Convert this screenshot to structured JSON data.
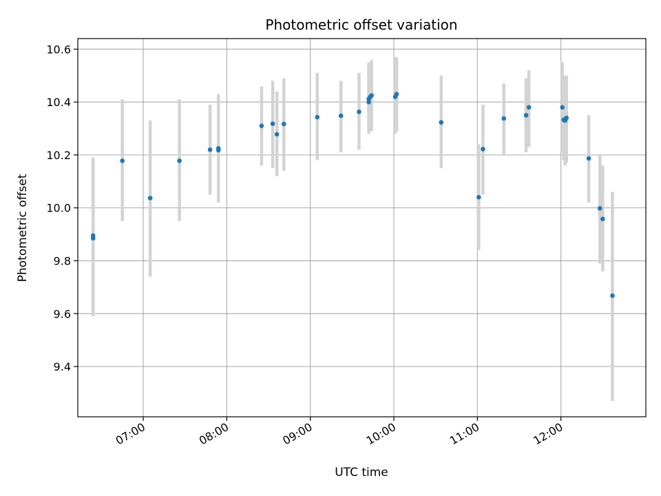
{
  "chart_data": {
    "type": "scatter",
    "title": "Photometric offset variation",
    "xlabel": "UTC time",
    "ylabel": "Photometric offset",
    "x_tick_labels": [
      "07:00",
      "08:00",
      "09:00",
      "10:00",
      "11:00",
      "12:00"
    ],
    "y_tick_labels": [
      "9.4",
      "9.6",
      "9.8",
      "10.0",
      "10.2",
      "10.4",
      "10.6"
    ],
    "y_ticks": [
      9.4,
      9.6,
      9.8,
      10.0,
      10.2,
      10.4,
      10.6
    ],
    "x_ticks": [
      "07:00",
      "08:00",
      "09:00",
      "10:00",
      "11:00",
      "12:00"
    ],
    "xlim": [
      "06:13",
      "13:01"
    ],
    "ylim": [
      9.21,
      10.64
    ],
    "grid": true,
    "colors": {
      "points": "#1f77b4",
      "errorbars": "#d3d3d3",
      "grid": "#b0b0b0"
    },
    "points": [
      {
        "t": "06:24",
        "y": 9.885,
        "lo": 9.59,
        "hi": 10.18
      },
      {
        "t": "06:24",
        "y": 9.895,
        "lo": 9.6,
        "hi": 10.19
      },
      {
        "t": "06:45",
        "y": 10.178,
        "lo": 9.95,
        "hi": 10.41
      },
      {
        "t": "07:05",
        "y": 10.037,
        "lo": 9.74,
        "hi": 10.33
      },
      {
        "t": "07:26",
        "y": 10.178,
        "lo": 9.95,
        "hi": 10.41
      },
      {
        "t": "07:48",
        "y": 10.22,
        "lo": 10.05,
        "hi": 10.39
      },
      {
        "t": "07:54",
        "y": 10.225,
        "lo": 10.03,
        "hi": 10.43
      },
      {
        "t": "07:54",
        "y": 10.218,
        "lo": 10.02,
        "hi": 10.42
      },
      {
        "t": "08:25",
        "y": 10.31,
        "lo": 10.16,
        "hi": 10.46
      },
      {
        "t": "08:33",
        "y": 10.318,
        "lo": 10.15,
        "hi": 10.48
      },
      {
        "t": "08:36",
        "y": 10.278,
        "lo": 10.12,
        "hi": 10.44
      },
      {
        "t": "08:41",
        "y": 10.317,
        "lo": 10.14,
        "hi": 10.49
      },
      {
        "t": "09:05",
        "y": 10.343,
        "lo": 10.18,
        "hi": 10.51
      },
      {
        "t": "09:22",
        "y": 10.348,
        "lo": 10.21,
        "hi": 10.48
      },
      {
        "t": "09:35",
        "y": 10.363,
        "lo": 10.22,
        "hi": 10.51
      },
      {
        "t": "09:42",
        "y": 10.4,
        "lo": 10.28,
        "hi": 10.54
      },
      {
        "t": "09:42",
        "y": 10.412,
        "lo": 10.28,
        "hi": 10.55
      },
      {
        "t": "09:43",
        "y": 10.42,
        "lo": 10.29,
        "hi": 10.55
      },
      {
        "t": "09:44",
        "y": 10.425,
        "lo": 10.29,
        "hi": 10.56
      },
      {
        "t": "10:01",
        "y": 10.42,
        "lo": 10.28,
        "hi": 10.57
      },
      {
        "t": "10:02",
        "y": 10.43,
        "lo": 10.29,
        "hi": 10.57
      },
      {
        "t": "10:34",
        "y": 10.323,
        "lo": 10.15,
        "hi": 10.5
      },
      {
        "t": "11:01",
        "y": 10.04,
        "lo": 9.84,
        "hi": 10.24
      },
      {
        "t": "11:04",
        "y": 10.222,
        "lo": 10.05,
        "hi": 10.39
      },
      {
        "t": "11:19",
        "y": 10.338,
        "lo": 10.2,
        "hi": 10.47
      },
      {
        "t": "11:35",
        "y": 10.35,
        "lo": 10.21,
        "hi": 10.49
      },
      {
        "t": "11:37",
        "y": 10.38,
        "lo": 10.23,
        "hi": 10.52
      },
      {
        "t": "12:01",
        "y": 10.38,
        "lo": 10.21,
        "hi": 10.55
      },
      {
        "t": "12:02",
        "y": 10.333,
        "lo": 10.18,
        "hi": 10.48
      },
      {
        "t": "12:03",
        "y": 10.33,
        "lo": 10.16,
        "hi": 10.5
      },
      {
        "t": "12:04",
        "y": 10.34,
        "lo": 10.17,
        "hi": 10.5
      },
      {
        "t": "12:20",
        "y": 10.187,
        "lo": 10.02,
        "hi": 10.35
      },
      {
        "t": "12:28",
        "y": 9.998,
        "lo": 9.79,
        "hi": 10.2
      },
      {
        "t": "12:30",
        "y": 9.958,
        "lo": 9.76,
        "hi": 10.16
      },
      {
        "t": "12:37",
        "y": 9.668,
        "lo": 9.27,
        "hi": 10.06
      }
    ]
  }
}
